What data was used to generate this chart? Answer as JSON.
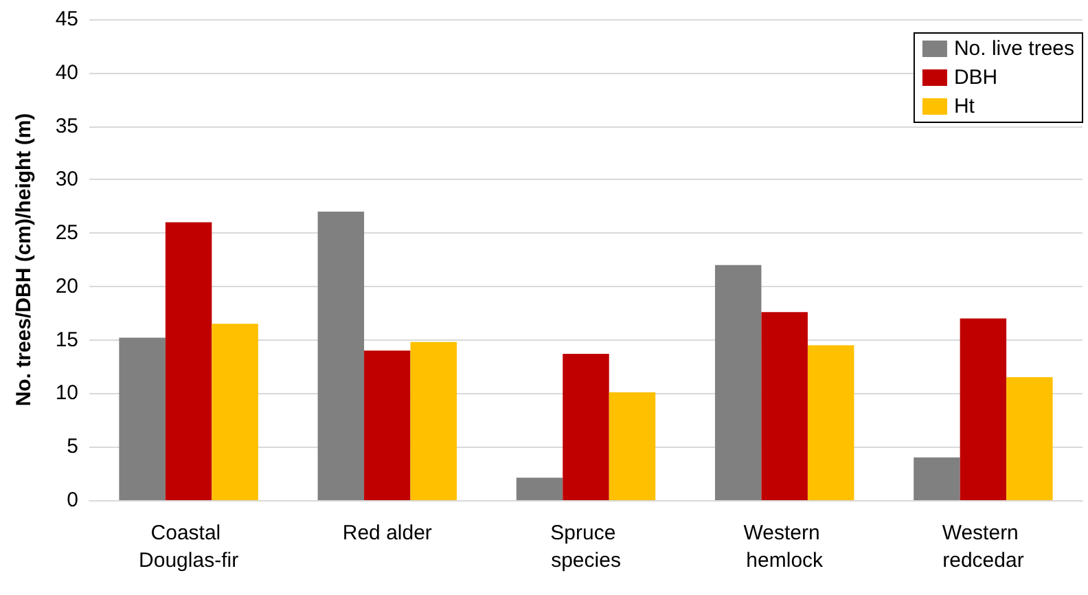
{
  "chart_data": {
    "type": "bar",
    "ylabel": "No. trees/DBH (cm)/height (m)",
    "categories": [
      "Coastal Douglas-fir",
      "Red alder",
      "Spruce species",
      "Western hemlock",
      "Western redcedar"
    ],
    "series": [
      {
        "name": "No. live trees",
        "color": "#808080",
        "values": [
          15.2,
          27.0,
          2.1,
          22.0,
          4.0
        ]
      },
      {
        "name": "DBH",
        "color": "#c00000",
        "values": [
          26.0,
          14.0,
          13.7,
          17.6,
          17.0
        ]
      },
      {
        "name": "Ht",
        "color": "#ffc000",
        "values": [
          16.5,
          14.8,
          10.1,
          14.5,
          11.5
        ]
      }
    ],
    "ylim": [
      0,
      45
    ],
    "yticks": [
      0,
      5,
      10,
      15,
      20,
      25,
      30,
      35,
      40,
      45
    ],
    "grid": "y",
    "legend": "top right"
  }
}
